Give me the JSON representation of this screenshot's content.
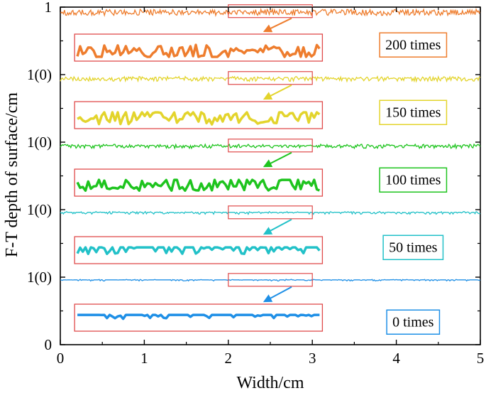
{
  "chart_data": {
    "type": "line",
    "xlabel": "Width/cm",
    "ylabel": "F-T depth of surface/cm",
    "xlim": [
      0,
      5
    ],
    "x_ticks": [
      "0",
      "1",
      "2",
      "3",
      "4",
      "5"
    ],
    "y_ticks": [
      "0",
      "1(0)",
      "1(0)",
      "1(0)",
      "1(0)",
      "1"
    ],
    "grid": false,
    "zoom_window": {
      "x_start": 2.0,
      "x_end": 3.0
    },
    "series": [
      {
        "name": "0 times",
        "color": "#1e8fe6",
        "baseline": 0.96,
        "amplitude": 0.012,
        "density": 0.35,
        "inset_amplitude": 0.06
      },
      {
        "name": "50 times",
        "color": "#22c1c8",
        "baseline": 0.96,
        "amplitude": 0.02,
        "density": 0.45,
        "inset_amplitude": 0.1
      },
      {
        "name": "100 times",
        "color": "#1ec41e",
        "baseline": 0.95,
        "amplitude": 0.03,
        "density": 0.75,
        "inset_amplitude": 0.16
      },
      {
        "name": "150 times",
        "color": "#e3d42c",
        "baseline": 0.95,
        "amplitude": 0.035,
        "density": 0.8,
        "inset_amplitude": 0.18
      },
      {
        "name": "200 times",
        "color": "#ee7d2e",
        "baseline": 0.94,
        "amplitude": 0.045,
        "density": 1.0,
        "inset_amplitude": 0.2
      }
    ]
  }
}
